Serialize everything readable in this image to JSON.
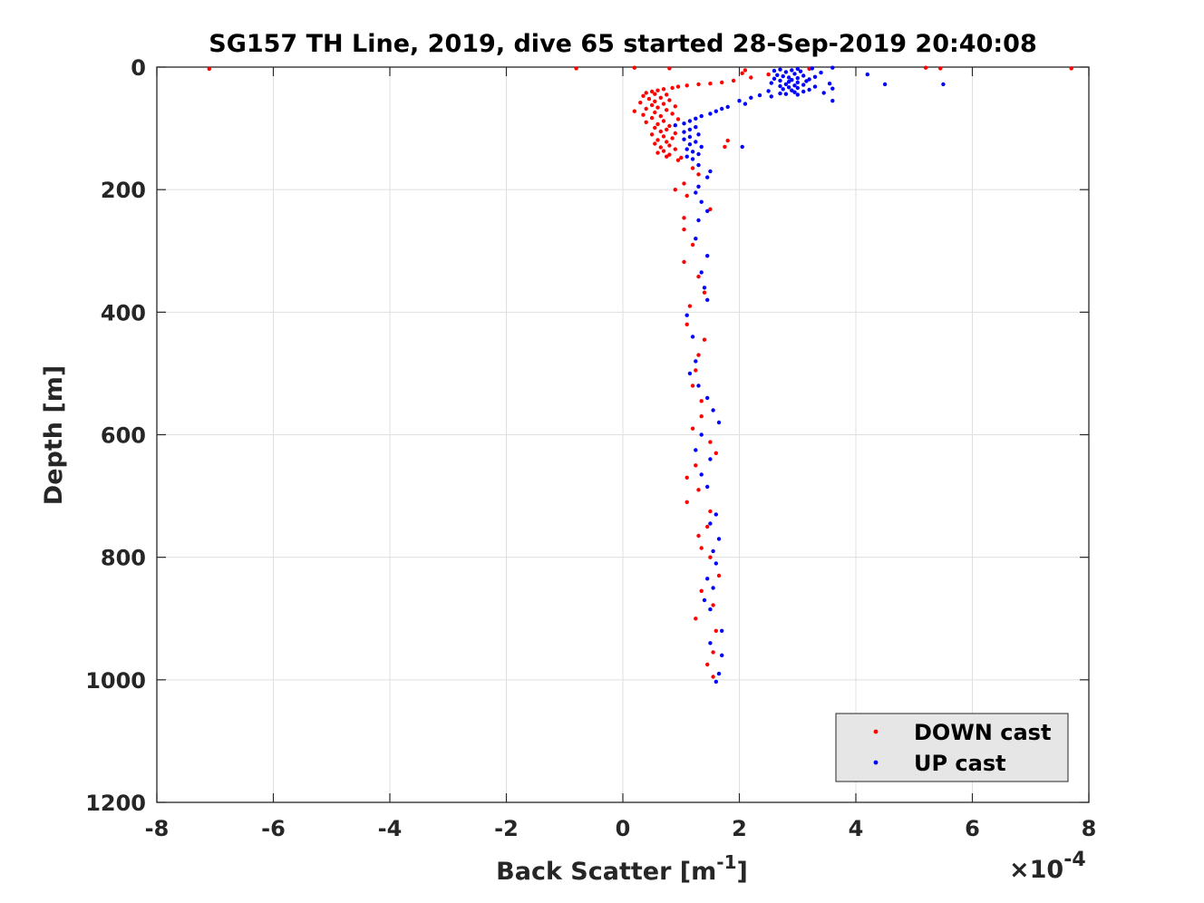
{
  "chart_data": {
    "type": "scatter",
    "title": "SG157 TH Line, 2019, dive 65 started 28-Sep-2019 20:40:08",
    "xlabel": "Back Scatter [m",
    "xlabel_superscript": "-1",
    "xlabel_close": "]",
    "x_exponent_label": "×10",
    "x_exponent_power": "-4",
    "x_scale_factor": 0.0001,
    "ylabel": "Depth [m]",
    "xlim": [
      -8,
      8
    ],
    "ylim": [
      1200,
      0
    ],
    "y_reversed": true,
    "grid": true,
    "legend_position": "bottom-right",
    "xticks": [
      -8,
      -6,
      -4,
      -2,
      0,
      2,
      4,
      6,
      8
    ],
    "xtick_labels": [
      "-8",
      "-6",
      "-4",
      "-2",
      "0",
      "2",
      "4",
      "6",
      "8"
    ],
    "yticks": [
      0,
      200,
      400,
      600,
      800,
      1000,
      1200
    ],
    "ytick_labels": [
      "0",
      "200",
      "400",
      "600",
      "800",
      "1000",
      "1200"
    ],
    "series": [
      {
        "name": "DOWN cast",
        "color": "#ff0000",
        "points": [
          [
            -7.1,
            3
          ],
          [
            -0.8,
            2
          ],
          [
            0.2,
            1
          ],
          [
            0.8,
            2
          ],
          [
            2.1,
            5
          ],
          [
            3.2,
            3
          ],
          [
            5.2,
            1
          ],
          [
            5.45,
            2
          ],
          [
            7.7,
            2
          ],
          [
            2.05,
            10
          ],
          [
            2.5,
            12
          ],
          [
            2.2,
            17
          ],
          [
            1.9,
            22
          ],
          [
            1.7,
            25
          ],
          [
            1.5,
            27
          ],
          [
            1.3,
            28
          ],
          [
            1.1,
            30
          ],
          [
            0.95,
            32
          ],
          [
            0.85,
            34
          ],
          [
            0.7,
            36
          ],
          [
            0.6,
            38
          ],
          [
            0.5,
            40
          ],
          [
            0.4,
            42
          ],
          [
            0.55,
            44
          ],
          [
            0.75,
            45
          ],
          [
            0.35,
            47
          ],
          [
            0.65,
            50
          ],
          [
            0.45,
            52
          ],
          [
            0.8,
            54
          ],
          [
            0.55,
            56
          ],
          [
            0.3,
            58
          ],
          [
            0.7,
            60
          ],
          [
            0.5,
            62
          ],
          [
            0.9,
            64
          ],
          [
            0.6,
            66
          ],
          [
            0.4,
            68
          ],
          [
            0.75,
            70
          ],
          [
            0.2,
            72
          ],
          [
            0.55,
            74
          ],
          [
            0.85,
            76
          ],
          [
            0.35,
            78
          ],
          [
            0.65,
            80
          ],
          [
            0.5,
            83
          ],
          [
            0.95,
            85
          ],
          [
            0.7,
            88
          ],
          [
            0.4,
            90
          ],
          [
            0.6,
            93
          ],
          [
            0.8,
            96
          ],
          [
            0.55,
            99
          ],
          [
            0.75,
            102
          ],
          [
            0.65,
            105
          ],
          [
            0.9,
            108
          ],
          [
            0.5,
            110
          ],
          [
            0.7,
            113
          ],
          [
            0.85,
            116
          ],
          [
            0.6,
            119
          ],
          [
            0.75,
            122
          ],
          [
            0.55,
            125
          ],
          [
            0.8,
            128
          ],
          [
            0.65,
            131
          ],
          [
            0.9,
            134
          ],
          [
            0.7,
            137
          ],
          [
            0.6,
            140
          ],
          [
            0.8,
            143
          ],
          [
            0.75,
            146
          ],
          [
            1.0,
            148
          ],
          [
            0.95,
            152
          ],
          [
            1.8,
            120
          ],
          [
            1.75,
            130
          ],
          [
            1.2,
            165
          ],
          [
            1.3,
            175
          ],
          [
            1.05,
            190
          ],
          [
            0.9,
            200
          ],
          [
            1.1,
            210
          ],
          [
            1.5,
            232
          ],
          [
            1.05,
            246
          ],
          [
            1.05,
            265
          ],
          [
            1.2,
            290
          ],
          [
            1.05,
            318
          ],
          [
            1.3,
            342
          ],
          [
            1.4,
            368
          ],
          [
            1.15,
            390
          ],
          [
            1.1,
            420
          ],
          [
            1.4,
            445
          ],
          [
            1.3,
            470
          ],
          [
            1.25,
            495
          ],
          [
            1.2,
            520
          ],
          [
            1.35,
            545
          ],
          [
            1.35,
            570
          ],
          [
            1.2,
            590
          ],
          [
            1.5,
            612
          ],
          [
            1.25,
            650
          ],
          [
            1.6,
            630
          ],
          [
            1.1,
            670
          ],
          [
            1.3,
            690
          ],
          [
            1.1,
            710
          ],
          [
            1.5,
            725
          ],
          [
            1.45,
            750
          ],
          [
            1.3,
            765
          ],
          [
            1.35,
            785
          ],
          [
            1.5,
            800
          ],
          [
            1.65,
            830
          ],
          [
            1.35,
            855
          ],
          [
            1.55,
            878
          ],
          [
            1.25,
            900
          ],
          [
            1.6,
            920
          ],
          [
            1.55,
            955
          ],
          [
            1.45,
            975
          ],
          [
            1.55,
            995
          ]
        ]
      },
      {
        "name": "UP cast",
        "color": "#0000ff",
        "points": [
          [
            3.6,
            1
          ],
          [
            3.25,
            2
          ],
          [
            3.0,
            3
          ],
          [
            2.7,
            4
          ],
          [
            2.9,
            5
          ],
          [
            2.6,
            6
          ],
          [
            3.05,
            7
          ],
          [
            2.8,
            8
          ],
          [
            3.4,
            9
          ],
          [
            4.2,
            12
          ],
          [
            2.95,
            11
          ],
          [
            2.65,
            13
          ],
          [
            3.1,
            14
          ],
          [
            2.75,
            15
          ],
          [
            3.3,
            16
          ],
          [
            2.85,
            17
          ],
          [
            3.0,
            18
          ],
          [
            2.6,
            19
          ],
          [
            3.2,
            20
          ],
          [
            2.9,
            21
          ],
          [
            2.7,
            22
          ],
          [
            3.15,
            23
          ],
          [
            2.85,
            24
          ],
          [
            3.0,
            25
          ],
          [
            2.55,
            26
          ],
          [
            3.55,
            27
          ],
          [
            2.8,
            28
          ],
          [
            4.5,
            28
          ],
          [
            5.5,
            28
          ],
          [
            3.1,
            29
          ],
          [
            2.95,
            30
          ],
          [
            2.7,
            31
          ],
          [
            3.3,
            32
          ],
          [
            2.85,
            33
          ],
          [
            3.0,
            34
          ],
          [
            3.6,
            35
          ],
          [
            2.75,
            36
          ],
          [
            3.2,
            37
          ],
          [
            2.9,
            38
          ],
          [
            2.5,
            39
          ],
          [
            3.1,
            40
          ],
          [
            2.95,
            41
          ],
          [
            3.45,
            42
          ],
          [
            2.7,
            43
          ],
          [
            2.8,
            44
          ],
          [
            3.0,
            45
          ],
          [
            2.35,
            46
          ],
          [
            2.55,
            48
          ],
          [
            2.2,
            50
          ],
          [
            2.0,
            55
          ],
          [
            3.6,
            55
          ],
          [
            2.1,
            60
          ],
          [
            1.8,
            65
          ],
          [
            1.7,
            68
          ],
          [
            1.6,
            72
          ],
          [
            1.5,
            76
          ],
          [
            1.35,
            80
          ],
          [
            1.25,
            84
          ],
          [
            1.15,
            88
          ],
          [
            1.05,
            92
          ],
          [
            0.9,
            95
          ],
          [
            1.25,
            98
          ],
          [
            1.15,
            102
          ],
          [
            1.05,
            106
          ],
          [
            1.3,
            110
          ],
          [
            1.15,
            114
          ],
          [
            1.05,
            118
          ],
          [
            1.25,
            122
          ],
          [
            1.15,
            126
          ],
          [
            1.35,
            130
          ],
          [
            1.1,
            134
          ],
          [
            1.2,
            138
          ],
          [
            1.3,
            142
          ],
          [
            1.1,
            146
          ],
          [
            1.2,
            150
          ],
          [
            2.05,
            130
          ],
          [
            1.3,
            160
          ],
          [
            1.5,
            170
          ],
          [
            1.45,
            180
          ],
          [
            1.3,
            195
          ],
          [
            1.25,
            205
          ],
          [
            1.35,
            220
          ],
          [
            1.45,
            235
          ],
          [
            1.3,
            250
          ],
          [
            1.25,
            280
          ],
          [
            1.45,
            308
          ],
          [
            1.35,
            335
          ],
          [
            1.4,
            360
          ],
          [
            1.45,
            380
          ],
          [
            1.1,
            405
          ],
          [
            1.2,
            440
          ],
          [
            1.25,
            480
          ],
          [
            1.15,
            500
          ],
          [
            1.3,
            520
          ],
          [
            1.45,
            540
          ],
          [
            1.55,
            560
          ],
          [
            1.65,
            580
          ],
          [
            1.35,
            600
          ],
          [
            1.25,
            625
          ],
          [
            1.5,
            640
          ],
          [
            1.35,
            665
          ],
          [
            1.45,
            685
          ],
          [
            1.6,
            730
          ],
          [
            1.5,
            745
          ],
          [
            1.65,
            770
          ],
          [
            1.55,
            790
          ],
          [
            1.6,
            810
          ],
          [
            1.45,
            835
          ],
          [
            1.55,
            850
          ],
          [
            1.4,
            870
          ],
          [
            1.5,
            885
          ],
          [
            1.7,
            920
          ],
          [
            1.5,
            940
          ],
          [
            1.7,
            960
          ],
          [
            1.65,
            990
          ],
          [
            1.6,
            1003
          ]
        ]
      }
    ]
  }
}
